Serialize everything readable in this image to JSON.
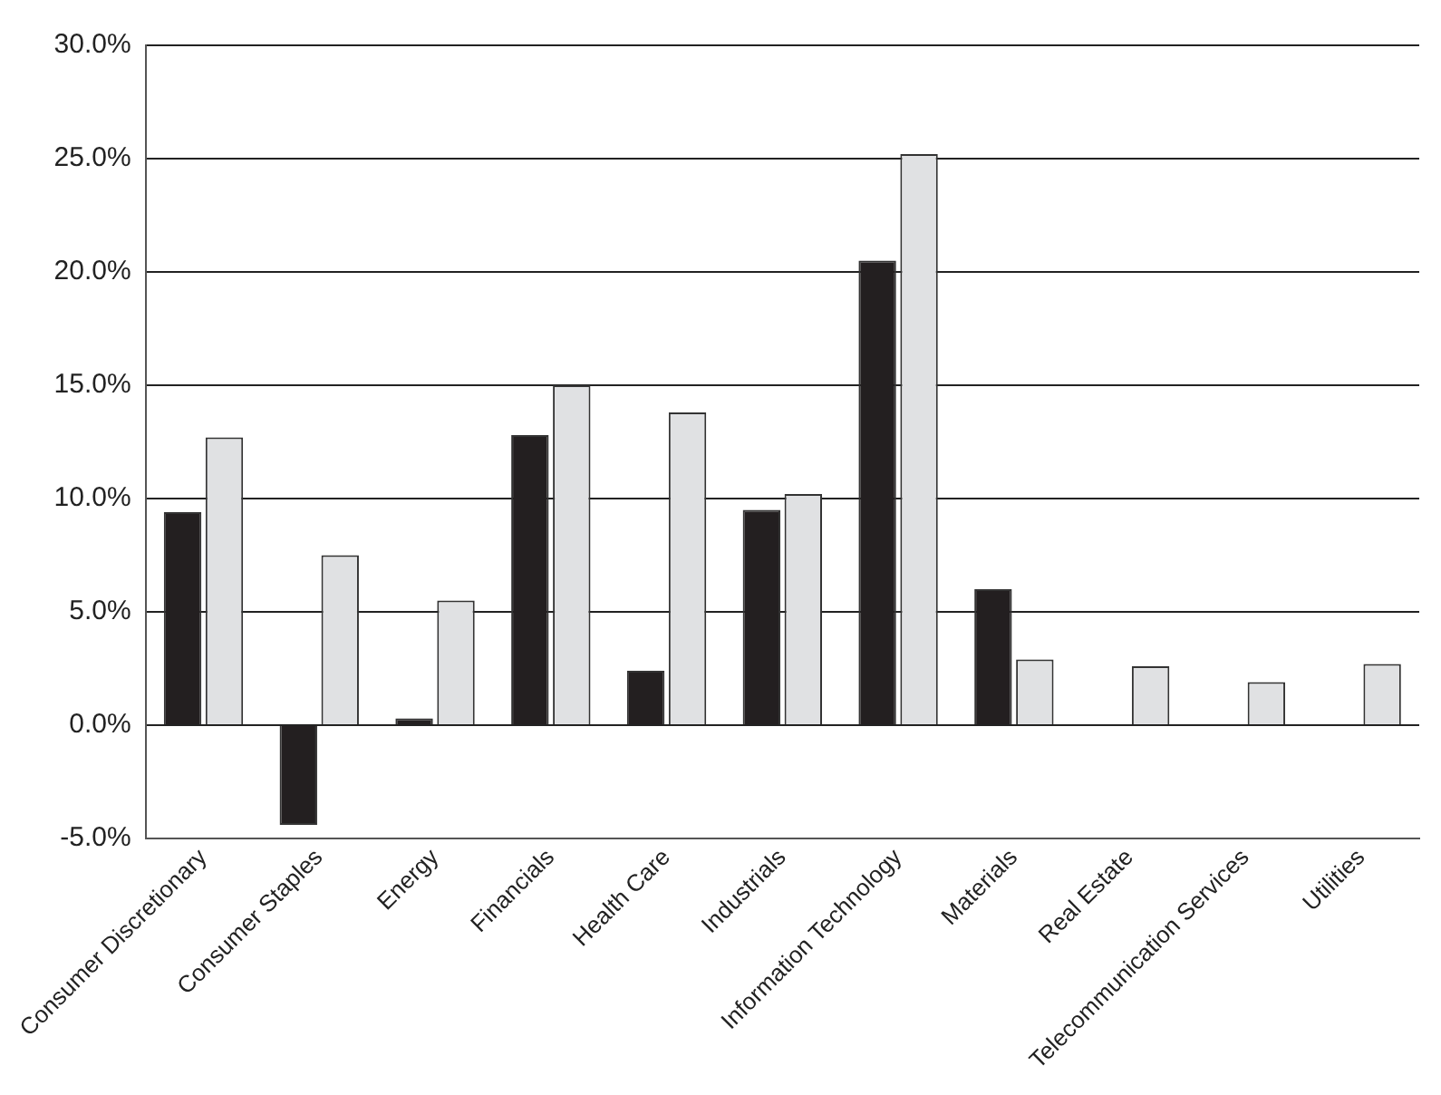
{
  "chart_data": {
    "type": "bar",
    "categories": [
      "Consumer Discretionary",
      "Consumer Staples",
      "Energy",
      "Financials",
      "Health Care",
      "Industrials",
      "Information Technology",
      "Materials",
      "Real Estate",
      "Telecommunication Services",
      "Utilities"
    ],
    "series": [
      {
        "color": "#231f20",
        "values": [
          9.4,
          -4.4,
          0.3,
          12.8,
          2.4,
          9.5,
          20.5,
          6.0,
          0,
          0,
          0
        ]
      },
      {
        "color": "#e0e1e3",
        "values": [
          12.7,
          7.5,
          5.5,
          15.0,
          13.8,
          10.2,
          25.2,
          2.9,
          2.6,
          1.9,
          2.7
        ]
      }
    ],
    "ylim": [
      -5,
      30
    ],
    "yticks": [
      {
        "value": -5,
        "label": "-5.0%"
      },
      {
        "value": 0,
        "label": "0.0%"
      },
      {
        "value": 5,
        "label": "5.0%"
      },
      {
        "value": 10,
        "label": "10.0%"
      },
      {
        "value": 15,
        "label": "15.0%"
      },
      {
        "value": 20,
        "label": "20.0%"
      },
      {
        "value": 25,
        "label": "25.0%"
      },
      {
        "value": 30,
        "label": "30.0%"
      }
    ],
    "grid": "y"
  }
}
